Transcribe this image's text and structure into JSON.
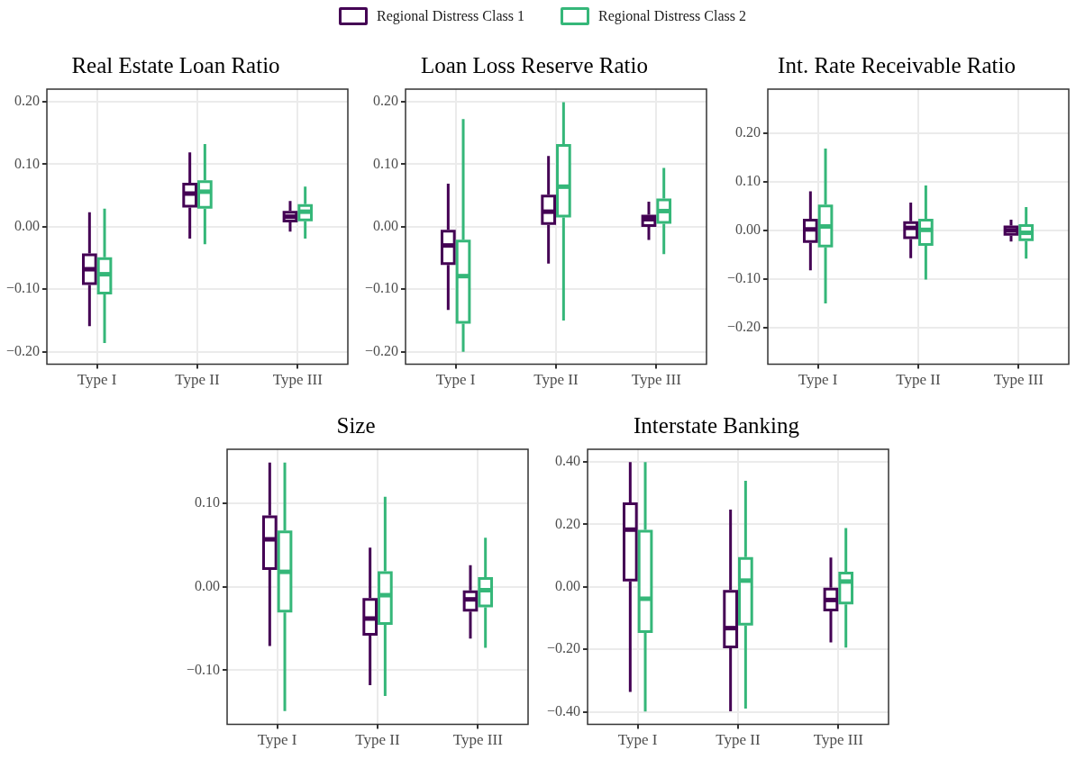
{
  "chart_data": [
    {
      "type": "box",
      "title": "Real Estate Loan Ratio",
      "categories": [
        "Type I",
        "Type II",
        "Type III"
      ],
      "legend": "top",
      "grid": true,
      "ylim": [
        -0.22,
        0.22
      ],
      "yticks": [
        {
          "value": -0.2,
          "label": "−0.20"
        },
        {
          "value": -0.1,
          "label": "−0.10"
        },
        {
          "value": 0,
          "label": "0.00"
        },
        {
          "value": 0.1,
          "label": "0.10"
        },
        {
          "value": 0.2,
          "label": "0.20"
        }
      ],
      "series": [
        {
          "name": "Regional Distress Class 1",
          "color": "#440154",
          "boxes": [
            {
              "low": -0.159,
              "q1": -0.091,
              "median": -0.068,
              "q3": -0.045,
              "high": 0.023
            },
            {
              "low": -0.019,
              "q1": 0.033,
              "median": 0.053,
              "q3": 0.068,
              "high": 0.119
            },
            {
              "low": -0.008,
              "q1": 0.009,
              "median": 0.016,
              "q3": 0.023,
              "high": 0.041
            }
          ]
        },
        {
          "name": "Regional Distress Class 2",
          "color": "#35b779",
          "boxes": [
            {
              "low": -0.186,
              "q1": -0.106,
              "median": -0.076,
              "q3": -0.051,
              "high": 0.029
            },
            {
              "low": -0.028,
              "q1": 0.031,
              "median": 0.056,
              "q3": 0.072,
              "high": 0.132
            },
            {
              "low": -0.019,
              "q1": 0.011,
              "median": 0.024,
              "q3": 0.034,
              "high": 0.064
            }
          ]
        }
      ]
    },
    {
      "type": "box",
      "title": "Loan Loss Reserve Ratio",
      "categories": [
        "Type I",
        "Type II",
        "Type III"
      ],
      "grid": true,
      "ylim": [
        -0.22,
        0.22
      ],
      "yticks": [
        {
          "value": -0.2,
          "label": "−0.20"
        },
        {
          "value": -0.1,
          "label": "−0.10"
        },
        {
          "value": 0,
          "label": "0.00"
        },
        {
          "value": 0.1,
          "label": "0.10"
        },
        {
          "value": 0.2,
          "label": "0.20"
        }
      ],
      "series": [
        {
          "color": "#440154",
          "boxes": [
            {
              "low": -0.133,
              "q1": -0.059,
              "median": -0.03,
              "q3": -0.007,
              "high": 0.069
            },
            {
              "low": -0.059,
              "q1": 0.005,
              "median": 0.024,
              "q3": 0.049,
              "high": 0.113
            },
            {
              "low": -0.021,
              "q1": 0.002,
              "median": 0.012,
              "q3": 0.017,
              "high": 0.04
            }
          ]
        },
        {
          "color": "#35b779",
          "boxes": [
            {
              "low": -0.2,
              "q1": -0.153,
              "median": -0.079,
              "q3": -0.023,
              "high": 0.172
            },
            {
              "low": -0.15,
              "q1": 0.017,
              "median": 0.064,
              "q3": 0.13,
              "high": 0.199
            },
            {
              "low": -0.044,
              "q1": 0.007,
              "median": 0.025,
              "q3": 0.043,
              "high": 0.094
            }
          ]
        }
      ]
    },
    {
      "type": "box",
      "title": "Int. Rate Receivable Ratio",
      "categories": [
        "Type I",
        "Type II",
        "Type III"
      ],
      "grid": true,
      "ylim": [
        -0.275,
        0.29
      ],
      "yticks": [
        {
          "value": -0.2,
          "label": "−0.20"
        },
        {
          "value": -0.1,
          "label": "−0.10"
        },
        {
          "value": 0,
          "label": "0.00"
        },
        {
          "value": 0.1,
          "label": "0.10"
        },
        {
          "value": 0.2,
          "label": "0.20"
        }
      ],
      "series": [
        {
          "color": "#440154",
          "boxes": [
            {
              "low": -0.082,
              "q1": -0.023,
              "median": 0.002,
              "q3": 0.021,
              "high": 0.08
            },
            {
              "low": -0.057,
              "q1": -0.015,
              "median": 0.005,
              "q3": 0.016,
              "high": 0.057
            },
            {
              "low": -0.023,
              "q1": -0.008,
              "median": 0,
              "q3": 0.007,
              "high": 0.022
            }
          ]
        },
        {
          "color": "#35b779",
          "boxes": [
            {
              "low": -0.15,
              "q1": -0.032,
              "median": 0.008,
              "q3": 0.05,
              "high": 0.168
            },
            {
              "low": -0.101,
              "q1": -0.029,
              "median": 0.001,
              "q3": 0.021,
              "high": 0.092
            },
            {
              "low": -0.058,
              "q1": -0.019,
              "median": -0.005,
              "q3": 0.01,
              "high": 0.048
            }
          ]
        }
      ]
    },
    {
      "type": "box",
      "title": "Size",
      "categories": [
        "Type I",
        "Type II",
        "Type III"
      ],
      "grid": true,
      "ylim": [
        -0.165,
        0.165
      ],
      "yticks": [
        {
          "value": -0.1,
          "label": "−0.10"
        },
        {
          "value": 0,
          "label": "0.00"
        },
        {
          "value": 0.1,
          "label": "0.10"
        }
      ],
      "series": [
        {
          "color": "#440154",
          "boxes": [
            {
              "low": -0.071,
              "q1": 0.022,
              "median": 0.057,
              "q3": 0.084,
              "high": 0.149
            },
            {
              "low": -0.118,
              "q1": -0.057,
              "median": -0.038,
              "q3": -0.015,
              "high": 0.047
            },
            {
              "low": -0.062,
              "q1": -0.028,
              "median": -0.015,
              "q3": -0.006,
              "high": 0.026
            }
          ]
        },
        {
          "color": "#35b779",
          "boxes": [
            {
              "low": -0.149,
              "q1": -0.029,
              "median": 0.018,
              "q3": 0.066,
              "high": 0.149
            },
            {
              "low": -0.131,
              "q1": -0.044,
              "median": -0.01,
              "q3": 0.017,
              "high": 0.108
            },
            {
              "low": -0.073,
              "q1": -0.023,
              "median": -0.004,
              "q3": 0.01,
              "high": 0.059
            }
          ]
        }
      ]
    },
    {
      "type": "box",
      "title": "Interstate Banking",
      "categories": [
        "Type I",
        "Type II",
        "Type III"
      ],
      "grid": true,
      "ylim": [
        -0.44,
        0.44
      ],
      "yticks": [
        {
          "value": -0.4,
          "label": "−0.40"
        },
        {
          "value": -0.2,
          "label": "−0.20"
        },
        {
          "value": 0,
          "label": "0.00"
        },
        {
          "value": 0.2,
          "label": "0.20"
        },
        {
          "value": 0.4,
          "label": "0.40"
        }
      ],
      "series": [
        {
          "color": "#440154",
          "boxes": [
            {
              "low": -0.336,
              "q1": 0.022,
              "median": 0.183,
              "q3": 0.266,
              "high": 0.399
            },
            {
              "low": -0.398,
              "q1": -0.192,
              "median": -0.132,
              "q3": -0.014,
              "high": 0.247
            },
            {
              "low": -0.178,
              "q1": -0.074,
              "median": -0.042,
              "q3": -0.007,
              "high": 0.094
            }
          ]
        },
        {
          "color": "#35b779",
          "boxes": [
            {
              "low": -0.399,
              "q1": -0.143,
              "median": -0.038,
              "q3": 0.178,
              "high": 0.399
            },
            {
              "low": -0.389,
              "q1": -0.119,
              "median": 0.02,
              "q3": 0.091,
              "high": 0.339
            },
            {
              "low": -0.194,
              "q1": -0.052,
              "median": 0.017,
              "q3": 0.044,
              "high": 0.188
            }
          ]
        }
      ]
    }
  ]
}
